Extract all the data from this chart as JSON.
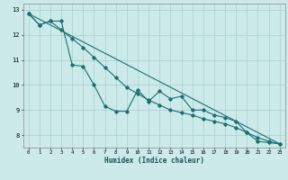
{
  "xlabel": "Humidex (Indice chaleur)",
  "bg_color": "#cceaea",
  "grid_color": "#aacece",
  "line_color": "#1a7070",
  "xlim": [
    -0.5,
    23.5
  ],
  "ylim": [
    7.5,
    13.25
  ],
  "yticks": [
    8,
    9,
    10,
    11,
    12,
    13
  ],
  "xticks": [
    0,
    1,
    2,
    3,
    4,
    5,
    6,
    7,
    8,
    9,
    10,
    11,
    12,
    13,
    14,
    15,
    16,
    17,
    18,
    19,
    20,
    21,
    22,
    23
  ],
  "line1_x": [
    0,
    1,
    2,
    3,
    4,
    5,
    6,
    7,
    8,
    9,
    10,
    11,
    12,
    13,
    14,
    15,
    16,
    17,
    18,
    19,
    20,
    21,
    22,
    23
  ],
  "line1_y": [
    12.85,
    12.4,
    12.55,
    12.55,
    10.8,
    10.75,
    10.0,
    9.15,
    8.95,
    8.95,
    9.8,
    9.35,
    9.75,
    9.45,
    9.55,
    9.0,
    9.0,
    8.8,
    8.7,
    8.55,
    8.1,
    7.75,
    7.7,
    7.65
  ],
  "line2_x": [
    0,
    23
  ],
  "line2_y": [
    12.85,
    7.65
  ],
  "line3_x": [
    0,
    1,
    2,
    3,
    4,
    5,
    6,
    7,
    8,
    9,
    10,
    11,
    12,
    13,
    14,
    15,
    16,
    17,
    18,
    19,
    20,
    21,
    22,
    23
  ],
  "line3_y": [
    12.85,
    12.4,
    12.55,
    12.2,
    11.85,
    11.5,
    11.1,
    10.7,
    10.3,
    9.9,
    9.65,
    9.4,
    9.2,
    9.0,
    8.9,
    8.8,
    8.65,
    8.55,
    8.45,
    8.3,
    8.1,
    7.9,
    7.75,
    7.65
  ]
}
